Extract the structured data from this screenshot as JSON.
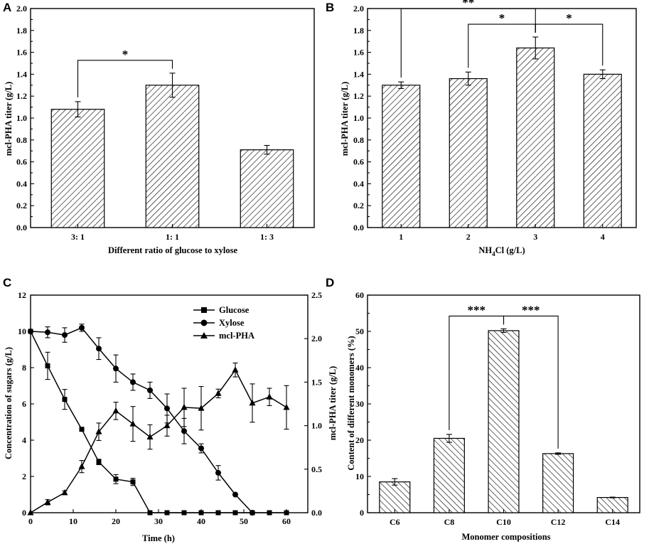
{
  "chart_data": [
    {
      "panel": "A",
      "type": "bar",
      "xlabel": "Different ratio of glucose to xylose",
      "ylabel": "mcl-PHA titer (g/L)",
      "ylim": [
        0,
        2.0
      ],
      "yticks": [
        "0.0",
        "0.2",
        "0.4",
        "0.6",
        "0.8",
        "1.0",
        "1.2",
        "1.4",
        "1.6",
        "1.8",
        "2.0"
      ],
      "categories": [
        "3: 1",
        "1: 1",
        "1: 3"
      ],
      "values": [
        1.08,
        1.3,
        0.71
      ],
      "errors": [
        0.07,
        0.11,
        0.04
      ],
      "significance": [
        {
          "from": 0,
          "to": 1,
          "label": "*"
        }
      ]
    },
    {
      "panel": "B",
      "type": "bar",
      "xlabel_main": "NH",
      "xlabel_sub": "4",
      "xlabel_rest": "Cl (g/L)",
      "ylabel": "mcl-PHA titer (g/L)",
      "ylim": [
        0,
        2.0
      ],
      "yticks": [
        "0.0",
        "0.2",
        "0.4",
        "0.6",
        "0.8",
        "1.0",
        "1.2",
        "1.4",
        "1.6",
        "1.8",
        "2.0"
      ],
      "categories": [
        "1",
        "2",
        "3",
        "4"
      ],
      "values": [
        1.3,
        1.36,
        1.64,
        1.4
      ],
      "errors": [
        0.03,
        0.06,
        0.1,
        0.04
      ],
      "significance": [
        {
          "from": 0,
          "to": 2,
          "label": "**"
        },
        {
          "from": 1,
          "to": 2,
          "label": "*"
        },
        {
          "from": 2,
          "to": 3,
          "label": "*"
        }
      ]
    },
    {
      "panel": "C",
      "type": "line",
      "xlabel": "Time (h)",
      "ylabel": "Concentration of sugars (g/L)",
      "y2label": "mcl-PHA titer (g/L)",
      "xlim": [
        0,
        65
      ],
      "ylim": [
        0,
        12
      ],
      "y2lim": [
        0,
        2.5
      ],
      "xticks": [
        "0",
        "10",
        "20",
        "30",
        "40",
        "50",
        "60"
      ],
      "yticks": [
        "0",
        "2",
        "4",
        "6",
        "8",
        "10",
        "12"
      ],
      "y2ticks": [
        "0.0",
        "0.5",
        "1.0",
        "1.5",
        "2.0",
        "2.5"
      ],
      "series": [
        {
          "name": "Glucose",
          "marker": "square",
          "axis": "left",
          "x": [
            0,
            4,
            8,
            12,
            16,
            20,
            24,
            28,
            32,
            36,
            40,
            44,
            48,
            52,
            56,
            60
          ],
          "y": [
            10.0,
            8.1,
            6.25,
            4.6,
            2.8,
            1.85,
            1.7,
            0,
            0,
            0,
            0,
            0,
            0,
            0,
            0,
            0
          ],
          "err": [
            0,
            0.75,
            0.55,
            0,
            0.15,
            0.25,
            0.2,
            0,
            0,
            0,
            0,
            0,
            0,
            0,
            0,
            0
          ]
        },
        {
          "name": "Xylose",
          "marker": "circle",
          "axis": "left",
          "x": [
            0,
            4,
            8,
            12,
            16,
            20,
            24,
            28,
            32,
            36,
            40,
            44,
            48,
            52
          ],
          "y": [
            10.0,
            9.95,
            9.8,
            10.2,
            9.05,
            7.95,
            7.2,
            6.75,
            5.75,
            4.5,
            3.55,
            2.2,
            1.0,
            0
          ],
          "err": [
            0,
            0.3,
            0.4,
            0.2,
            0.6,
            0.75,
            0.45,
            0.45,
            0.8,
            0.7,
            0.25,
            0.4,
            0,
            0
          ]
        },
        {
          "name": "mcl-PHA",
          "marker": "triangle",
          "axis": "right",
          "x": [
            0,
            4,
            8,
            12,
            16,
            20,
            24,
            28,
            32,
            36,
            40,
            44,
            48,
            52,
            56,
            60
          ],
          "y": [
            0.0,
            0.12,
            0.23,
            0.53,
            0.93,
            1.17,
            1.02,
            0.87,
            1.0,
            1.21,
            1.2,
            1.37,
            1.64,
            1.26,
            1.33,
            1.21
          ],
          "err": [
            0,
            0.03,
            0.02,
            0.07,
            0.1,
            0.1,
            0.2,
            0.14,
            0.12,
            0.22,
            0.25,
            0.05,
            0.08,
            0.22,
            0.1,
            0.25
          ]
        }
      ]
    },
    {
      "panel": "D",
      "type": "bar",
      "xlabel": "Monomer compositions",
      "ylabel": "Content of different monomers (%)",
      "ylim": [
        0,
        60
      ],
      "yticks": [
        "0",
        "10",
        "20",
        "30",
        "40",
        "50",
        "60"
      ],
      "categories": [
        "C6",
        "C8",
        "C10",
        "C12",
        "C14"
      ],
      "values": [
        8.5,
        20.5,
        50.2,
        16.3,
        4.2
      ],
      "errors": [
        0.9,
        1.1,
        0.5,
        0.2,
        0.1
      ],
      "significance": [
        {
          "from": 1,
          "to": 2,
          "label": "***"
        },
        {
          "from": 2,
          "to": 3,
          "label": "***"
        }
      ]
    }
  ]
}
